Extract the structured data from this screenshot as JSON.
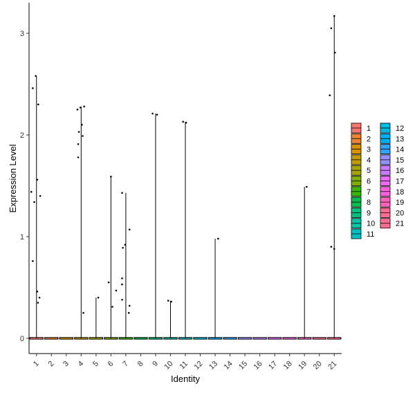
{
  "chart_data": {
    "type": "violin",
    "xlabel": "Identity",
    "ylabel": "Expression Level",
    "ylim": [
      -0.15,
      3.3
    ],
    "yticks": [
      0,
      1,
      2,
      3
    ],
    "categories": [
      "1",
      "2",
      "3",
      "4",
      "5",
      "6",
      "7",
      "8",
      "9",
      "10",
      "11",
      "12",
      "13",
      "14",
      "15",
      "16",
      "17",
      "18",
      "19",
      "20",
      "21"
    ],
    "x_tick_angle": 45,
    "grid": false,
    "legend_position": "right",
    "legend_columns": 2,
    "colors": [
      "#F8766D",
      "#EB8335",
      "#D89000",
      "#BF9C00",
      "#A3A500",
      "#7CAE00",
      "#39B600",
      "#00BB4E",
      "#00BF7D",
      "#00C1A3",
      "#00BFC4",
      "#00BAE0",
      "#00B0F6",
      "#35A2FF",
      "#9590FF",
      "#C77CFF",
      "#E76BF3",
      "#FA62DB",
      "#FF62BC",
      "#FF6C91",
      "#FF6C91"
    ],
    "series": [
      {
        "name": "1",
        "max": 2.58,
        "points": [
          [
            -0.25,
            2.46
          ],
          [
            -0.05,
            2.58
          ],
          [
            0.12,
            2.3
          ],
          [
            -0.35,
            1.44
          ],
          [
            -0.15,
            1.34
          ],
          [
            0.05,
            1.56
          ],
          [
            0.25,
            1.4
          ],
          [
            -0.25,
            0.76
          ],
          [
            0.05,
            0.46
          ],
          [
            0.2,
            0.4
          ],
          [
            0.1,
            0.35
          ]
        ]
      },
      {
        "name": "2",
        "max": 0,
        "points": []
      },
      {
        "name": "3",
        "max": 0,
        "points": []
      },
      {
        "name": "4",
        "max": 2.28,
        "points": [
          [
            -0.25,
            2.25
          ],
          [
            -0.05,
            2.27
          ],
          [
            0.2,
            2.28
          ],
          [
            -0.15,
            2.03
          ],
          [
            0.05,
            2.1
          ],
          [
            -0.2,
            1.91
          ],
          [
            0.1,
            1.99
          ],
          [
            -0.2,
            1.78
          ],
          [
            0.15,
            0.25
          ]
        ]
      },
      {
        "name": "5",
        "max": 0.4,
        "points": [
          [
            0.15,
            0.4
          ]
        ]
      },
      {
        "name": "6",
        "max": 1.59,
        "points": [
          [
            0.0,
            1.59
          ],
          [
            -0.15,
            0.55
          ],
          [
            0.35,
            0.47
          ],
          [
            0.1,
            0.31
          ]
        ]
      },
      {
        "name": "7",
        "max": 1.43,
        "points": [
          [
            -0.25,
            1.43
          ],
          [
            -0.05,
            0.92
          ],
          [
            -0.2,
            0.89
          ],
          [
            0.25,
            1.07
          ],
          [
            -0.25,
            0.59
          ],
          [
            -0.25,
            0.53
          ],
          [
            -0.25,
            0.38
          ],
          [
            0.25,
            0.32
          ],
          [
            0.2,
            0.25
          ]
        ]
      },
      {
        "name": "8",
        "max": 0,
        "points": []
      },
      {
        "name": "9",
        "max": 2.21,
        "points": [
          [
            -0.2,
            2.21
          ],
          [
            0.1,
            2.2
          ]
        ]
      },
      {
        "name": "10",
        "max": 0.37,
        "points": [
          [
            -0.15,
            0.37
          ],
          [
            0.05,
            0.36
          ]
        ]
      },
      {
        "name": "11",
        "max": 2.13,
        "points": [
          [
            -0.15,
            2.13
          ],
          [
            0.05,
            2.12
          ]
        ]
      },
      {
        "name": "12",
        "max": 0,
        "points": []
      },
      {
        "name": "13",
        "max": 0.98,
        "points": [
          [
            0.2,
            0.98
          ]
        ]
      },
      {
        "name": "14",
        "max": 0,
        "points": []
      },
      {
        "name": "15",
        "max": 0,
        "points": []
      },
      {
        "name": "16",
        "max": 0,
        "points": []
      },
      {
        "name": "17",
        "max": 0,
        "points": []
      },
      {
        "name": "18",
        "max": 0,
        "points": []
      },
      {
        "name": "19",
        "max": 1.49,
        "points": [
          [
            0.15,
            1.49
          ]
        ]
      },
      {
        "name": "20",
        "max": 0,
        "points": []
      },
      {
        "name": "21",
        "max": 3.17,
        "points": [
          [
            0.0,
            3.17
          ],
          [
            -0.2,
            3.05
          ],
          [
            0.05,
            2.81
          ],
          [
            -0.3,
            2.39
          ],
          [
            -0.2,
            0.9
          ],
          [
            0.0,
            0.88
          ]
        ]
      }
    ]
  }
}
